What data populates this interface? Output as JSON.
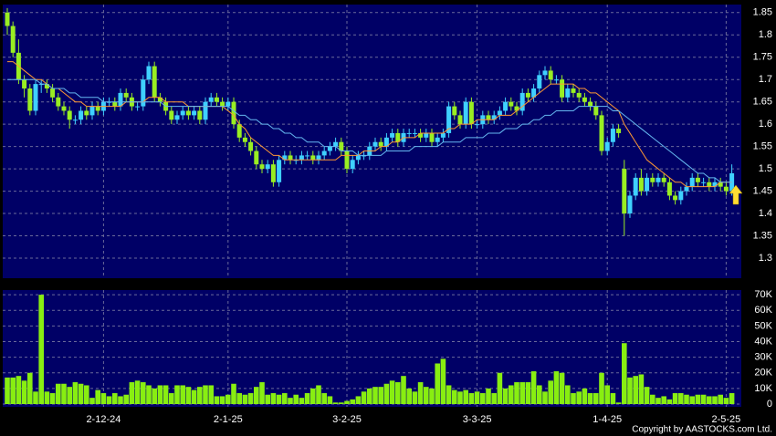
{
  "chart_data": [
    {
      "type": "candlestick",
      "categories": [
        null,
        null,
        null,
        null,
        null,
        null,
        null,
        null,
        null,
        null,
        null,
        null,
        null,
        null,
        null,
        null,
        null,
        "2-12-24",
        null,
        null,
        null,
        null,
        null,
        null,
        null,
        null,
        null,
        null,
        null,
        null,
        null,
        null,
        null,
        null,
        null,
        null,
        null,
        null,
        null,
        "2-1-25",
        null,
        null,
        null,
        null,
        null,
        null,
        null,
        null,
        null,
        null,
        null,
        null,
        null,
        null,
        null,
        null,
        null,
        null,
        null,
        null,
        "3-2-25",
        null,
        null,
        null,
        null,
        null,
        null,
        null,
        null,
        null,
        null,
        null,
        null,
        null,
        null,
        null,
        null,
        null,
        null,
        null,
        null,
        null,
        null,
        "3-3-25",
        null,
        null,
        null,
        null,
        null,
        null,
        null,
        null,
        null,
        null,
        null,
        null,
        null,
        null,
        null,
        null,
        null,
        null,
        null,
        null,
        null,
        null,
        "1-4-25",
        null,
        null,
        null,
        null,
        null,
        null,
        null,
        null,
        null,
        null,
        null,
        null,
        null,
        null,
        null,
        null,
        null,
        null,
        null,
        null,
        "2-5-25",
        null
      ],
      "open": [
        1.85,
        1.82,
        1.76,
        1.7,
        1.68,
        1.63,
        1.69,
        1.69,
        1.68,
        1.66,
        1.64,
        1.63,
        1.61,
        1.61,
        1.63,
        1.62,
        1.64,
        1.63,
        1.65,
        1.65,
        1.64,
        1.67,
        1.66,
        1.64,
        1.64,
        1.7,
        1.73,
        1.66,
        1.65,
        1.63,
        1.61,
        1.62,
        1.63,
        1.62,
        1.63,
        1.61,
        1.65,
        1.66,
        1.65,
        1.64,
        1.65,
        1.6,
        1.57,
        1.56,
        1.54,
        1.51,
        1.5,
        1.51,
        1.47,
        1.52,
        1.53,
        1.52,
        1.52,
        1.53,
        1.53,
        1.52,
        1.53,
        1.54,
        1.55,
        1.56,
        1.54,
        1.5,
        1.52,
        1.53,
        1.53,
        1.55,
        1.56,
        1.55,
        1.57,
        1.58,
        1.56,
        1.58,
        1.58,
        1.58,
        1.57,
        1.58,
        1.56,
        1.57,
        1.58,
        1.64,
        1.62,
        1.6,
        1.65,
        1.6,
        1.6,
        1.62,
        1.61,
        1.62,
        1.63,
        1.65,
        1.64,
        1.63,
        1.67,
        1.66,
        1.68,
        1.71,
        1.72,
        1.7,
        1.7,
        1.66,
        1.68,
        1.67,
        1.66,
        1.65,
        1.64,
        1.62,
        1.54,
        1.56,
        1.59,
        1.5,
        1.4,
        1.44,
        1.48,
        1.45,
        1.48,
        1.47,
        1.48,
        1.47,
        1.44,
        1.43,
        1.45,
        1.46,
        1.48,
        1.47,
        1.47,
        1.46,
        1.47,
        1.46,
        1.45
      ],
      "high": [
        1.86,
        1.83,
        1.79,
        1.71,
        1.69,
        1.7,
        1.7,
        1.7,
        1.69,
        1.67,
        1.65,
        1.64,
        1.62,
        1.64,
        1.64,
        1.65,
        1.65,
        1.66,
        1.66,
        1.66,
        1.68,
        1.68,
        1.67,
        1.65,
        1.71,
        1.74,
        1.74,
        1.67,
        1.66,
        1.64,
        1.63,
        1.64,
        1.64,
        1.64,
        1.64,
        1.66,
        1.67,
        1.67,
        1.66,
        1.66,
        1.66,
        1.61,
        1.58,
        1.57,
        1.55,
        1.52,
        1.52,
        1.52,
        1.53,
        1.54,
        1.54,
        1.53,
        1.54,
        1.54,
        1.54,
        1.54,
        1.55,
        1.56,
        1.57,
        1.57,
        1.55,
        1.53,
        1.54,
        1.54,
        1.56,
        1.57,
        1.57,
        1.58,
        1.59,
        1.59,
        1.59,
        1.59,
        1.59,
        1.59,
        1.59,
        1.59,
        1.58,
        1.59,
        1.65,
        1.65,
        1.63,
        1.66,
        1.66,
        1.61,
        1.63,
        1.63,
        1.63,
        1.64,
        1.66,
        1.66,
        1.65,
        1.68,
        1.68,
        1.69,
        1.72,
        1.73,
        1.73,
        1.71,
        1.71,
        1.69,
        1.69,
        1.68,
        1.67,
        1.66,
        1.65,
        1.63,
        1.57,
        1.6,
        1.6,
        1.52,
        1.45,
        1.49,
        1.5,
        1.49,
        1.49,
        1.49,
        1.49,
        1.48,
        1.45,
        1.46,
        1.47,
        1.49,
        1.49,
        1.48,
        1.48,
        1.48,
        1.48,
        1.47,
        1.51
      ],
      "low": [
        1.8,
        1.75,
        1.69,
        1.66,
        1.62,
        1.62,
        1.67,
        1.67,
        1.65,
        1.63,
        1.62,
        1.59,
        1.6,
        1.6,
        1.61,
        1.61,
        1.62,
        1.62,
        1.64,
        1.63,
        1.63,
        1.65,
        1.63,
        1.63,
        1.63,
        1.69,
        1.65,
        1.64,
        1.62,
        1.6,
        1.6,
        1.61,
        1.61,
        1.61,
        1.6,
        1.6,
        1.64,
        1.64,
        1.63,
        1.63,
        1.59,
        1.56,
        1.55,
        1.53,
        1.5,
        1.49,
        1.49,
        1.46,
        1.46,
        1.51,
        1.51,
        1.51,
        1.51,
        1.52,
        1.51,
        1.51,
        1.52,
        1.53,
        1.54,
        1.53,
        1.49,
        1.49,
        1.51,
        1.52,
        1.52,
        1.54,
        1.54,
        1.54,
        1.56,
        1.55,
        1.55,
        1.57,
        1.57,
        1.56,
        1.56,
        1.55,
        1.55,
        1.56,
        1.57,
        1.61,
        1.59,
        1.59,
        1.59,
        1.59,
        1.59,
        1.6,
        1.6,
        1.61,
        1.62,
        1.63,
        1.62,
        1.62,
        1.65,
        1.65,
        1.67,
        1.7,
        1.69,
        1.69,
        1.65,
        1.65,
        1.66,
        1.65,
        1.64,
        1.63,
        1.61,
        1.53,
        1.53,
        1.55,
        1.57,
        1.35,
        1.39,
        1.43,
        1.44,
        1.44,
        1.46,
        1.46,
        1.46,
        1.43,
        1.42,
        1.42,
        1.44,
        1.45,
        1.46,
        1.46,
        1.45,
        1.45,
        1.45,
        1.44,
        1.44
      ],
      "close": [
        1.82,
        1.76,
        1.7,
        1.68,
        1.63,
        1.69,
        1.69,
        1.68,
        1.66,
        1.64,
        1.63,
        1.61,
        1.61,
        1.63,
        1.62,
        1.64,
        1.63,
        1.65,
        1.65,
        1.64,
        1.67,
        1.66,
        1.64,
        1.64,
        1.7,
        1.73,
        1.66,
        1.65,
        1.63,
        1.61,
        1.62,
        1.63,
        1.62,
        1.63,
        1.61,
        1.65,
        1.66,
        1.65,
        1.64,
        1.65,
        1.6,
        1.57,
        1.56,
        1.54,
        1.51,
        1.5,
        1.51,
        1.47,
        1.52,
        1.53,
        1.52,
        1.52,
        1.53,
        1.53,
        1.52,
        1.53,
        1.54,
        1.55,
        1.56,
        1.54,
        1.5,
        1.52,
        1.53,
        1.53,
        1.55,
        1.56,
        1.55,
        1.57,
        1.58,
        1.56,
        1.58,
        1.58,
        1.58,
        1.57,
        1.58,
        1.56,
        1.57,
        1.58,
        1.64,
        1.62,
        1.6,
        1.65,
        1.6,
        1.6,
        1.62,
        1.61,
        1.62,
        1.63,
        1.65,
        1.64,
        1.63,
        1.67,
        1.66,
        1.68,
        1.71,
        1.72,
        1.7,
        1.7,
        1.66,
        1.68,
        1.67,
        1.66,
        1.65,
        1.64,
        1.62,
        1.54,
        1.56,
        1.59,
        1.58,
        1.4,
        1.44,
        1.48,
        1.45,
        1.48,
        1.47,
        1.48,
        1.47,
        1.44,
        1.43,
        1.45,
        1.46,
        1.48,
        1.47,
        1.47,
        1.46,
        1.47,
        1.46,
        1.45,
        1.49
      ],
      "up_color": "#3fd0ff",
      "down_color": "#99ee22",
      "lines": [
        {
          "color": "#ff9933",
          "values": [
            1.74,
            1.74,
            1.73,
            1.72,
            1.71,
            1.7,
            1.7,
            1.69,
            1.68,
            1.68,
            1.67,
            1.66,
            1.65,
            1.65,
            1.64,
            1.64,
            1.64,
            1.64,
            1.64,
            1.64,
            1.64,
            1.65,
            1.65,
            1.65,
            1.65,
            1.66,
            1.66,
            1.66,
            1.65,
            1.65,
            1.65,
            1.65,
            1.64,
            1.64,
            1.64,
            1.64,
            1.64,
            1.64,
            1.64,
            1.63,
            1.62,
            1.6,
            1.59,
            1.57,
            1.56,
            1.55,
            1.54,
            1.53,
            1.53,
            1.52,
            1.52,
            1.52,
            1.52,
            1.52,
            1.52,
            1.52,
            1.52,
            1.52,
            1.52,
            1.53,
            1.53,
            1.53,
            1.53,
            1.54,
            1.54,
            1.54,
            1.55,
            1.55,
            1.56,
            1.56,
            1.57,
            1.57,
            1.57,
            1.58,
            1.58,
            1.58,
            1.58,
            1.58,
            1.59,
            1.59,
            1.6,
            1.6,
            1.6,
            1.61,
            1.61,
            1.61,
            1.61,
            1.62,
            1.62,
            1.62,
            1.63,
            1.64,
            1.65,
            1.66,
            1.67,
            1.68,
            1.69,
            1.69,
            1.69,
            1.69,
            1.69,
            1.68,
            1.68,
            1.67,
            1.67,
            1.66,
            1.65,
            1.64,
            1.63,
            1.6,
            1.58,
            1.56,
            1.54,
            1.52,
            1.51,
            1.5,
            1.49,
            1.48,
            1.47,
            1.47,
            1.46,
            1.46,
            1.46,
            1.46,
            1.46,
            1.46,
            1.47,
            1.47,
            1.47
          ]
        },
        {
          "color": "#66b8f0",
          "values": [
            1.7,
            1.7,
            1.7,
            1.7,
            1.7,
            1.7,
            1.69,
            1.69,
            1.68,
            1.68,
            1.68,
            1.67,
            1.67,
            1.66,
            1.66,
            1.66,
            1.66,
            1.65,
            1.65,
            1.65,
            1.65,
            1.65,
            1.65,
            1.65,
            1.65,
            1.65,
            1.65,
            1.65,
            1.64,
            1.64,
            1.64,
            1.64,
            1.64,
            1.64,
            1.64,
            1.64,
            1.64,
            1.64,
            1.64,
            1.64,
            1.63,
            1.62,
            1.62,
            1.61,
            1.61,
            1.6,
            1.6,
            1.59,
            1.59,
            1.58,
            1.58,
            1.57,
            1.57,
            1.56,
            1.56,
            1.56,
            1.55,
            1.55,
            1.55,
            1.54,
            1.54,
            1.54,
            1.53,
            1.53,
            1.53,
            1.53,
            1.53,
            1.54,
            1.54,
            1.54,
            1.54,
            1.54,
            1.55,
            1.55,
            1.55,
            1.55,
            1.55,
            1.56,
            1.56,
            1.56,
            1.56,
            1.57,
            1.57,
            1.57,
            1.57,
            1.58,
            1.58,
            1.58,
            1.59,
            1.59,
            1.59,
            1.6,
            1.6,
            1.61,
            1.61,
            1.62,
            1.62,
            1.63,
            1.63,
            1.63,
            1.63,
            1.64,
            1.64,
            1.64,
            1.64,
            1.64,
            1.64,
            1.63,
            1.63,
            1.62,
            1.61,
            1.6,
            1.59,
            1.58,
            1.57,
            1.56,
            1.55,
            1.54,
            1.53,
            1.52,
            1.51,
            1.5,
            1.49,
            1.49,
            1.48,
            1.48,
            1.47,
            1.47,
            1.47
          ]
        }
      ],
      "ylim": [
        1.255,
        1.868
      ],
      "yticks": [
        1.3,
        1.35,
        1.4,
        1.45,
        1.5,
        1.55,
        1.6,
        1.65,
        1.7,
        1.75,
        1.8,
        1.85
      ],
      "grid": true
    },
    {
      "type": "bar",
      "values": [
        17000,
        17000,
        18000,
        15000,
        20000,
        8000,
        70000,
        8000,
        7000,
        13000,
        13000,
        11000,
        14000,
        13000,
        12000,
        4000,
        9000,
        7000,
        5000,
        7000,
        5000,
        6000,
        14000,
        15000,
        14000,
        12000,
        10000,
        12000,
        12000,
        7000,
        12000,
        12000,
        11000,
        9000,
        11000,
        12000,
        12000,
        5000,
        5000,
        6000,
        13000,
        7000,
        6000,
        7000,
        11000,
        14000,
        6000,
        7000,
        6000,
        7000,
        4000,
        6000,
        4000,
        7000,
        10000,
        12000,
        7000,
        5000,
        1000,
        1000,
        2000,
        3000,
        5000,
        8000,
        10000,
        11000,
        11000,
        13000,
        15000,
        14000,
        18000,
        10000,
        8000,
        14000,
        11000,
        10000,
        26000,
        29000,
        12000,
        9000,
        8000,
        9000,
        7000,
        8000,
        7000,
        10000,
        7000,
        20000,
        10000,
        12000,
        14000,
        14000,
        14000,
        21000,
        12000,
        8000,
        15000,
        21000,
        20000,
        12000,
        7000,
        8000,
        10000,
        7000,
        7000,
        20000,
        12000,
        7000,
        1000,
        39000,
        17000,
        18000,
        19000,
        11000,
        6000,
        4000,
        5000,
        3000,
        7000,
        7000,
        6000,
        5000,
        6000,
        6000,
        5000,
        5000,
        6000,
        4000,
        7000
      ],
      "color": "#88ee11",
      "ylim": [
        0,
        73000
      ],
      "yticks": [
        0,
        {
          "value": 10000,
          "label": "10K"
        },
        {
          "value": 20000,
          "label": "20K"
        },
        {
          "value": 30000,
          "label": "30K"
        },
        {
          "value": 40000,
          "label": "40K"
        },
        {
          "value": 50000,
          "label": "50K"
        },
        {
          "value": 60000,
          "label": "60K"
        },
        {
          "value": 70000,
          "label": "70K"
        }
      ],
      "grid": true
    }
  ],
  "footer": {
    "copyright": "Copyright by AASTOCKS.com Ltd."
  }
}
